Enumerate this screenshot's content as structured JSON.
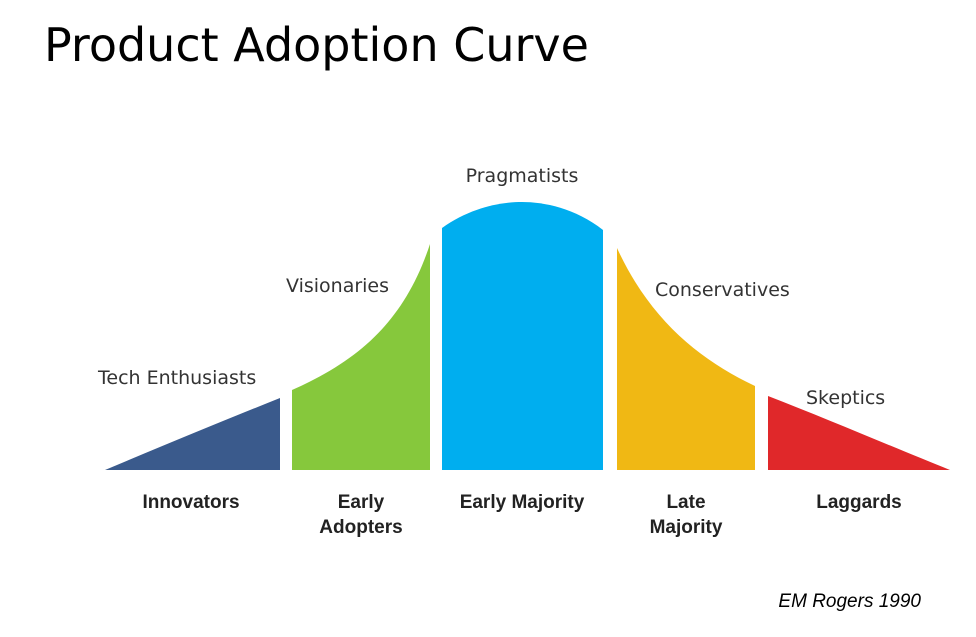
{
  "title": "Product Adoption Curve",
  "citation": "EM Rogers 1990",
  "segments": [
    {
      "name": [
        "Innovators"
      ],
      "persona": "Tech Enthusiasts",
      "color": "#3a5a8c"
    },
    {
      "name": [
        "Early",
        "Adopters"
      ],
      "persona": "Visionaries",
      "color": "#86c83c"
    },
    {
      "name": [
        "Early Majority"
      ],
      "persona": "Pragmatists",
      "color": "#00aeef"
    },
    {
      "name": [
        "Late",
        "Majority"
      ],
      "persona": "Conservatives",
      "color": "#f0b814"
    },
    {
      "name": [
        "Laggards"
      ],
      "persona": "Skeptics",
      "color": "#e0282a"
    }
  ]
}
